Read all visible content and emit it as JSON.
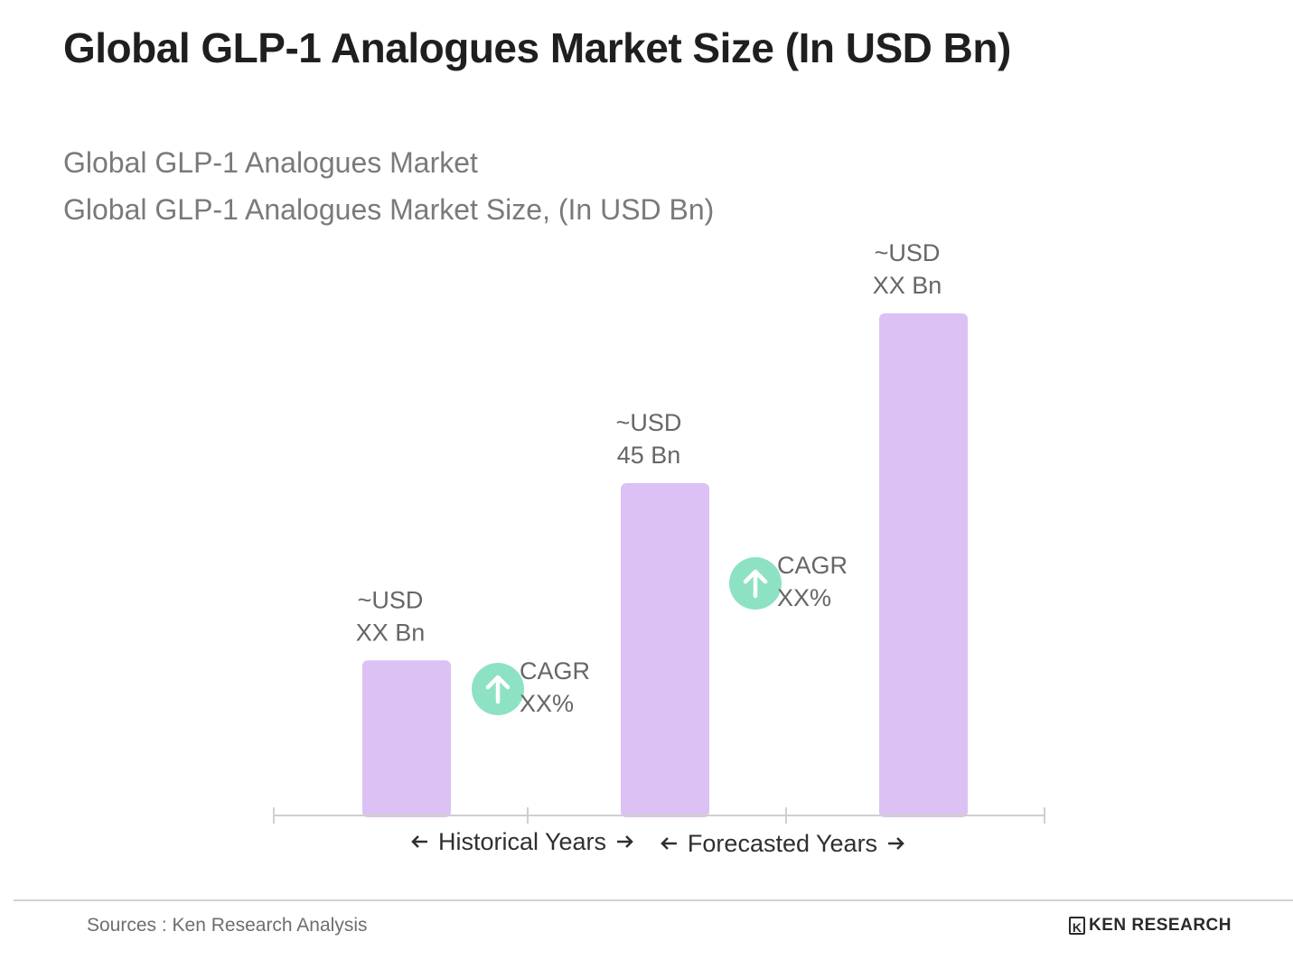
{
  "title": "Global GLP-1 Analogues Market Size (In USD Bn)",
  "subtitle1": "Global GLP-1 Analogues Market",
  "subtitle2": "Global GLP-1 Analogues Market Size, (In USD Bn)",
  "source": "Sources : Ken Research Analysis",
  "brand": "KEN RESEARCH",
  "colors": {
    "bar": "#dcc1f5",
    "axis": "#cfcfcf",
    "cagr": "#8ee2c4",
    "label": "#666666"
  },
  "chart_data": {
    "type": "bar",
    "categories": [
      "",
      "",
      ""
    ],
    "values": [
      21,
      45,
      68
    ],
    "value_labels": [
      [
        "~USD",
        "XX Bn"
      ],
      [
        "~USD",
        "45 Bn"
      ],
      [
        "~USD",
        "XX Bn"
      ]
    ],
    "ylim": [
      0,
      70
    ],
    "annotations": [
      {
        "between": [
          0,
          1
        ],
        "icon": "up-arrow-icon",
        "lines": [
          "CAGR",
          "XX%"
        ]
      },
      {
        "between": [
          1,
          2
        ],
        "icon": "up-arrow-icon",
        "lines": [
          "CAGR",
          "XX%"
        ]
      }
    ],
    "period_labels": [
      {
        "text": "Historical Years",
        "span": [
          0,
          1
        ]
      },
      {
        "text": "Forecasted Years",
        "span": [
          1,
          2
        ]
      }
    ]
  }
}
